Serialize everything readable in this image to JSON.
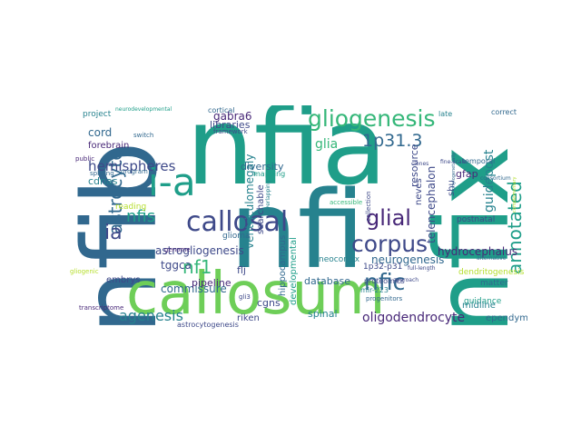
{
  "colors": {
    "c1": "#440154",
    "c2": "#482878",
    "c3": "#3e4989",
    "c4": "#31688e",
    "c5": "#26828e",
    "c6": "#1f9e89",
    "c7": "#35b779",
    "c8": "#6ece58",
    "c9": "#b5de2b",
    "c10": "#fde725"
  },
  "words": [
    {
      "id": "nfia",
      "text": "nfia",
      "color": "c6"
    },
    {
      "id": "nfi",
      "text": "nfi",
      "color": "c5"
    },
    {
      "id": "nfib",
      "text": "nfib",
      "color": "c4"
    },
    {
      "id": "nfix",
      "text": "nfix",
      "color": "c6"
    },
    {
      "id": "callosum",
      "text": "callosum",
      "color": "c8"
    },
    {
      "id": "i-a",
      "text": "i-a",
      "color": "c6"
    },
    {
      "id": "gliogenesis",
      "text": "gliogenesis",
      "color": "c7"
    },
    {
      "id": "corpus",
      "text": "corpus",
      "color": "c3"
    },
    {
      "id": "callosal",
      "text": "callosal",
      "color": "c3"
    },
    {
      "id": "glial",
      "text": "glial",
      "color": "c2"
    },
    {
      "id": "1p31-3",
      "text": "1p31.3",
      "color": "c4"
    },
    {
      "id": "astrocyte",
      "text": "astrocyte",
      "color": "c4"
    },
    {
      "id": "nfic",
      "text": "nfic",
      "color": "c4"
    },
    {
      "id": "annotated",
      "text": "annotated",
      "color": "c6"
    },
    {
      "id": "hemispheres",
      "text": "hemispheres",
      "color": "c3"
    },
    {
      "id": "nfis",
      "text": "nfis",
      "color": "c6"
    },
    {
      "id": "ia",
      "text": "ia",
      "color": "c3"
    },
    {
      "id": "nf1",
      "text": "nf1",
      "color": "c7"
    },
    {
      "id": "agenesis",
      "text": "agenesis",
      "color": "c5"
    },
    {
      "id": "oligodendrocyte",
      "text": "oligodendrocyte",
      "color": "c2"
    },
    {
      "id": "guidepost",
      "text": "guidepost",
      "color": "c5"
    },
    {
      "id": "glia",
      "text": "glia",
      "color": "c7"
    },
    {
      "id": "cord",
      "text": "cord",
      "color": "c4"
    },
    {
      "id": "telencephalon",
      "text": "telencephalon",
      "color": "c3"
    },
    {
      "id": "ventriculomegaly",
      "text": "ventriculomegaly",
      "color": "c5"
    },
    {
      "id": "hydrocephalus",
      "text": "hydrocephalus",
      "color": "c2"
    },
    {
      "id": "neurogenesis",
      "text": "neurogenesis",
      "color": "c4"
    },
    {
      "id": "astrogliogenesis",
      "text": "astrogliogenesis",
      "color": "c3"
    },
    {
      "id": "commissure",
      "text": "commissure",
      "color": "c4"
    },
    {
      "id": "database",
      "text": "database",
      "color": "c4"
    },
    {
      "id": "searchable",
      "text": "searchable",
      "color": "c3"
    },
    {
      "id": "diversity",
      "text": "diversity",
      "color": "c4"
    },
    {
      "id": "tggca",
      "text": "tggca",
      "color": "c3"
    },
    {
      "id": "gabra6",
      "text": "gabra6",
      "color": "c2"
    },
    {
      "id": "cdnas",
      "text": "cdnas",
      "color": "c5"
    },
    {
      "id": "forebrain",
      "text": "forebrain",
      "color": "c2"
    },
    {
      "id": "glioma",
      "text": "glioma",
      "color": "c4"
    },
    {
      "id": "spinal",
      "text": "spinal",
      "color": "c5"
    },
    {
      "id": "cgns",
      "text": "cgns",
      "color": "c3"
    },
    {
      "id": "flj",
      "text": "flj",
      "color": "c3"
    },
    {
      "id": "neocortex",
      "text": "neocortex",
      "color": "c5"
    },
    {
      "id": "gfap",
      "text": "gfap",
      "color": "c2"
    },
    {
      "id": "matter",
      "text": "matter",
      "color": "c4"
    },
    {
      "id": "guidance",
      "text": "guidance",
      "color": "c6"
    },
    {
      "id": "midline",
      "text": "midline",
      "color": "c5"
    },
    {
      "id": "ependymal",
      "text": "ependymal",
      "color": "c4"
    },
    {
      "id": "dendritogenesis",
      "text": "dendritogenesis",
      "color": "c9"
    },
    {
      "id": "resource",
      "text": "resource",
      "color": "c3"
    },
    {
      "id": "neves",
      "text": "neves",
      "color": "c3"
    },
    {
      "id": "shu",
      "text": "shu",
      "color": "c3"
    },
    {
      "id": "postnatal",
      "text": "postnatal",
      "color": "c3"
    },
    {
      "id": "developmental",
      "text": "developmental",
      "color": "c6"
    },
    {
      "id": "hippocampus",
      "text": "hippocampus",
      "color": "c4"
    },
    {
      "id": "pipeline",
      "text": "pipeline",
      "color": "c2"
    },
    {
      "id": "libraries",
      "text": "libraries",
      "color": "c3"
    },
    {
      "id": "riken",
      "text": "riken",
      "color": "c3"
    },
    {
      "id": "embrys",
      "text": "embrys",
      "color": "c3"
    },
    {
      "id": "reading",
      "text": "reading",
      "color": "c9"
    },
    {
      "id": "project",
      "text": "project",
      "color": "c5"
    },
    {
      "id": "cortical",
      "text": "cortical",
      "color": "c4"
    },
    {
      "id": "nervous",
      "text": "nervous",
      "color": "c3"
    },
    {
      "id": "temporal",
      "text": "temporal",
      "color": "c4"
    },
    {
      "id": "1p32-p31",
      "text": "1p32-p31",
      "color": "c3"
    },
    {
      "id": "proteomics",
      "text": "proteomics",
      "color": "c3"
    },
    {
      "id": "mir-223",
      "text": "mir-223",
      "color": "c5"
    },
    {
      "id": "progenitors",
      "text": "progenitors",
      "color": "c4"
    },
    {
      "id": "astrocytogenesis",
      "text": "astrocytogenesis",
      "color": "c3"
    },
    {
      "id": "transcriptome",
      "text": "transcriptome",
      "color": "c2"
    },
    {
      "id": "program",
      "text": "program",
      "color": "c4"
    },
    {
      "id": "framework",
      "text": "framework",
      "color": "c3"
    },
    {
      "id": "mapping",
      "text": "mapping",
      "color": "c6"
    },
    {
      "id": "accessible",
      "text": "accessible",
      "color": "c7"
    },
    {
      "id": "splicing",
      "text": "splicing",
      "color": "c4"
    },
    {
      "id": "genome",
      "text": "genome",
      "color": "c2"
    },
    {
      "id": "gli3",
      "text": "gli3",
      "color": "c3"
    },
    {
      "id": "correct",
      "text": "correct",
      "color": "c4"
    },
    {
      "id": "late",
      "text": "late",
      "color": "c5"
    },
    {
      "id": "collection",
      "text": "collection",
      "color": "c3"
    },
    {
      "id": "public",
      "text": "public",
      "color": "c2"
    },
    {
      "id": "switch",
      "text": "switch",
      "color": "c4"
    },
    {
      "id": "gliogenic",
      "text": "gliogenic",
      "color": "c9"
    },
    {
      "id": "alternative",
      "text": "alternative",
      "color": "c4"
    },
    {
      "id": "clones",
      "text": "clones",
      "color": "c3"
    },
    {
      "id": "fine-scale",
      "text": "fine-scale",
      "color": "c3"
    },
    {
      "id": "approach",
      "text": "approach",
      "color": "c3"
    },
    {
      "id": "full-length",
      "text": "full-length",
      "color": "c3"
    },
    {
      "id": "overlapping",
      "text": "overlapping",
      "color": "c5"
    },
    {
      "id": "consortium",
      "text": "consortium",
      "color": "c4"
    },
    {
      "id": "neurodevelopmental",
      "text": "neurodevelopmental",
      "color": "c6"
    },
    {
      "id": "phylogenetically",
      "text": "phylogenetically",
      "color": "c4"
    },
    {
      "id": "complementary",
      "text": "complementary",
      "color": "c9"
    }
  ]
}
